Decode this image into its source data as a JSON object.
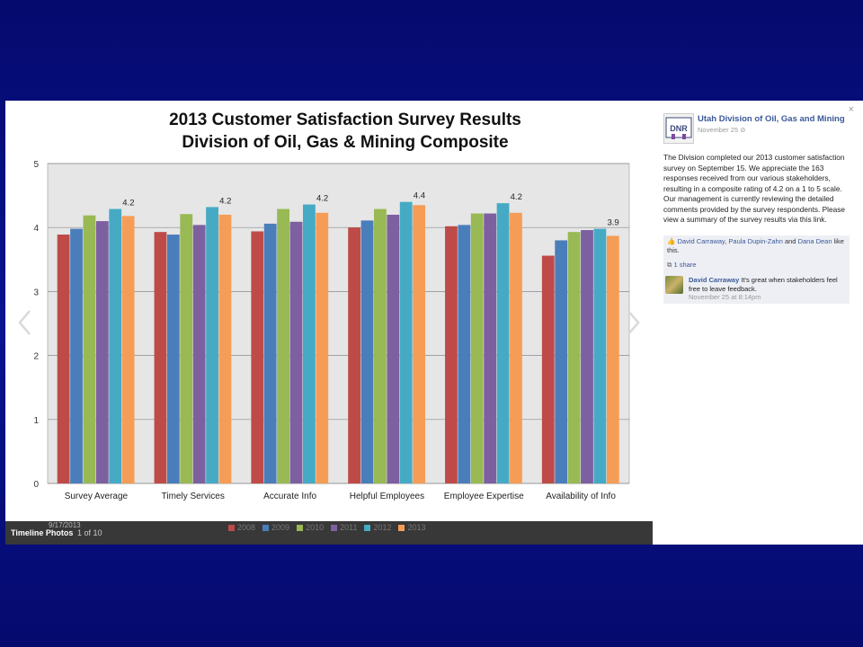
{
  "viewer": {
    "footer_label": "Timeline Photos",
    "counter": "1 of 10",
    "photo_date": "9/17/2013",
    "close": "×"
  },
  "post": {
    "page_name": "Utah Division of Oil, Gas and Mining",
    "date": "November 25",
    "logo_text": "DNR",
    "body": "The Division completed our 2013 customer satisfaction survey on September 15. We appreciate the 163 responses received from our various stakeholders, resulting in a composite rating of 4.2 on a 1 to 5 scale. Our management is currently reviewing the detailed comments provided by the survey respondents. Please view a summary of the survey results via this link.",
    "likes": {
      "name1": "David Carraway",
      "name2": "Paula Dupin-Zahn",
      "and": "and",
      "name3": "Dana Dean",
      "suffix": "like this."
    },
    "shares": "1 share",
    "comment": {
      "author": "David Carraway",
      "text": "It's great when stakeholders feel free to leave feedback.",
      "time": "November 25 at 8:14pm"
    }
  },
  "colors": {
    "2008": "#be4b48",
    "2009": "#4a7ebb",
    "2010": "#98b954",
    "2011": "#7d60a0",
    "2012": "#46aac5",
    "2013": "#f59d56"
  },
  "chart_data": {
    "type": "bar",
    "title": "2013 Customer Satisfaction Survey Results",
    "subtitle": "Division of Oil, Gas & Mining Composite",
    "categories": [
      "Survey Average",
      "Timely Services",
      "Accurate Info",
      "Helpful Employees",
      "Employee Expertise",
      "Availability of Info"
    ],
    "ylim": [
      0,
      5
    ],
    "yticks": [
      "0",
      "1",
      "2",
      "3",
      "4",
      "5"
    ],
    "grid": true,
    "legend_position": "bottom",
    "series": [
      {
        "name": "2008",
        "values": [
          3.89,
          3.93,
          3.94,
          4.0,
          4.02,
          3.56
        ]
      },
      {
        "name": "2009",
        "values": [
          3.98,
          3.89,
          4.06,
          4.11,
          4.04,
          3.8
        ]
      },
      {
        "name": "2010",
        "values": [
          4.19,
          4.21,
          4.29,
          4.29,
          4.22,
          3.93
        ]
      },
      {
        "name": "2011",
        "values": [
          4.1,
          4.04,
          4.09,
          4.2,
          4.22,
          3.96
        ]
      },
      {
        "name": "2012",
        "values": [
          4.29,
          4.32,
          4.36,
          4.4,
          4.38,
          3.98
        ]
      },
      {
        "name": "2013",
        "values": [
          4.18,
          4.2,
          4.23,
          4.35,
          4.23,
          3.87
        ]
      }
    ],
    "data_labels": [
      "4.2",
      "4.2",
      "4.2",
      "4.4",
      "4.2",
      "3.9"
    ]
  }
}
